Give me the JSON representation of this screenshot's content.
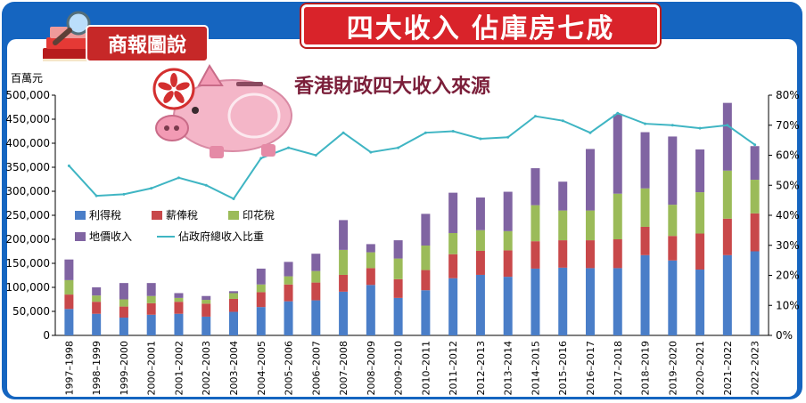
{
  "header": {
    "tag": "商報圖說",
    "headline": "四大收入 佔庫房七成"
  },
  "colors": {
    "frame": "#1565c0",
    "headline_bg": "#d9232a",
    "profits_tax": "#4a7ec8",
    "salaries_tax": "#c8484a",
    "stamp_duty": "#9bbb59",
    "land_premium": "#8064a2",
    "share_line": "#3fb5c3"
  },
  "chart_data": {
    "type": "bar",
    "stacked": true,
    "title": "香港財政四大收入來源",
    "y_left_label": "百萬元",
    "y_left_range": [
      0,
      500000
    ],
    "y_left_ticks": [
      "0",
      "50,000",
      "100,000",
      "150,000",
      "200,000",
      "250,000",
      "300,000",
      "350,000",
      "400,000",
      "450,000",
      "500,000"
    ],
    "y_right_range": [
      0,
      80
    ],
    "y_right_ticks": [
      "0%",
      "10%",
      "20%",
      "30%",
      "40%",
      "50%",
      "60%",
      "70%",
      "80%"
    ],
    "categories": [
      "1997–1998",
      "1998–1999",
      "1999–2000",
      "2000–2001",
      "2001–2002",
      "2002–2003",
      "2003–2004",
      "2004–2005",
      "2005–2006",
      "2006–2007",
      "2007–2008",
      "2008–2009",
      "2009–2010",
      "2010–2011",
      "2011–2012",
      "2012–2013",
      "2013–2014",
      "2014–2015",
      "2015–2016",
      "2016–2017",
      "2017–2018",
      "2018–2019",
      "2019–2020",
      "2020–2021",
      "2021–2022",
      "2022–2023"
    ],
    "series": [
      {
        "name": "利得稅",
        "values": [
          55000,
          45000,
          37000,
          43000,
          45000,
          39000,
          49000,
          59000,
          71000,
          73000,
          91000,
          105000,
          78000,
          94000,
          119000,
          126000,
          122000,
          139000,
          141000,
          140000,
          140000,
          167000,
          156000,
          137000,
          167000,
          175000
        ]
      },
      {
        "name": "薪俸稅",
        "values": [
          30000,
          25000,
          23000,
          24000,
          25000,
          27000,
          27000,
          31000,
          35000,
          37000,
          35000,
          35000,
          39000,
          42000,
          50000,
          50000,
          55000,
          57000,
          57000,
          58000,
          60000,
          59000,
          51000,
          75000,
          76000,
          79000
        ]
      },
      {
        "name": "印花稅",
        "values": [
          30000,
          13000,
          15000,
          15000,
          8000,
          8000,
          12000,
          16000,
          17000,
          24000,
          52000,
          33000,
          43000,
          51000,
          44000,
          43000,
          40000,
          75000,
          62000,
          62000,
          95000,
          80000,
          65000,
          86000,
          100000,
          70000
        ]
      },
      {
        "name": "地價收入",
        "values": [
          43000,
          17000,
          34000,
          27000,
          10000,
          8000,
          4000,
          33000,
          30000,
          36000,
          62000,
          17000,
          38000,
          66000,
          84000,
          68000,
          82000,
          77000,
          60000,
          128000,
          165000,
          117000,
          142000,
          89000,
          141000,
          70000
        ]
      }
    ],
    "line_series": {
      "name": "佔政府總收入比重",
      "axis": "right",
      "values": [
        56.5,
        46.5,
        47.0,
        49.0,
        52.5,
        50.0,
        45.5,
        59.0,
        62.5,
        60.0,
        67.5,
        61.0,
        62.5,
        67.5,
        68.0,
        65.5,
        66.0,
        73.0,
        71.5,
        67.5,
        74.0,
        70.5,
        70.0,
        69.0,
        70.0,
        63.5
      ]
    },
    "legend_position": "inside-left",
    "grid": false
  }
}
